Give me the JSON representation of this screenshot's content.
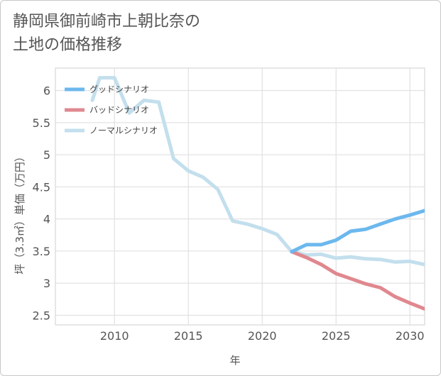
{
  "title": "静岡県御前崎市上朝比奈の\n土地の価格推移",
  "chart_data": {
    "type": "line",
    "title": "静岡県御前崎市上朝比奈の土地の価格推移",
    "xlabel": "年",
    "ylabel": "坪（3.3㎡）単価（万円）",
    "xlim": [
      2006,
      2031
    ],
    "ylim": [
      2.35,
      6.35
    ],
    "xticks": [
      2010,
      2015,
      2020,
      2025,
      2030
    ],
    "yticks": [
      2.5,
      3,
      3.5,
      4,
      4.5,
      5,
      5.5,
      6
    ],
    "grid": true,
    "legend_position": "top-left",
    "series": [
      {
        "name": "グッドシナリオ",
        "color": "#6cb8ee",
        "x": [
          2022,
          2023,
          2024,
          2025,
          2026,
          2027,
          2028,
          2029,
          2030,
          2031
        ],
        "y": [
          3.49,
          3.6,
          3.6,
          3.67,
          3.81,
          3.84,
          3.92,
          4.0,
          4.06,
          4.13
        ]
      },
      {
        "name": "バッドシナリオ",
        "color": "#e0888f",
        "x": [
          2022,
          2023,
          2024,
          2025,
          2026,
          2027,
          2028,
          2029,
          2030,
          2031
        ],
        "y": [
          3.49,
          3.4,
          3.29,
          3.15,
          3.07,
          2.99,
          2.93,
          2.79,
          2.69,
          2.6
        ]
      },
      {
        "name": "ノーマルシナリオ",
        "color": "#c3dfed",
        "x": [
          2008.5,
          2009,
          2010,
          2011,
          2012,
          2013,
          2014,
          2015,
          2016,
          2017,
          2018,
          2019,
          2020,
          2021,
          2022,
          2023,
          2024,
          2025,
          2026,
          2027,
          2028,
          2029,
          2030,
          2031
        ],
        "y": [
          5.85,
          6.2,
          6.2,
          5.65,
          5.85,
          5.82,
          4.94,
          4.75,
          4.65,
          4.46,
          3.97,
          3.92,
          3.85,
          3.76,
          3.49,
          3.44,
          3.45,
          3.39,
          3.41,
          3.38,
          3.37,
          3.33,
          3.34,
          3.29
        ]
      }
    ]
  }
}
